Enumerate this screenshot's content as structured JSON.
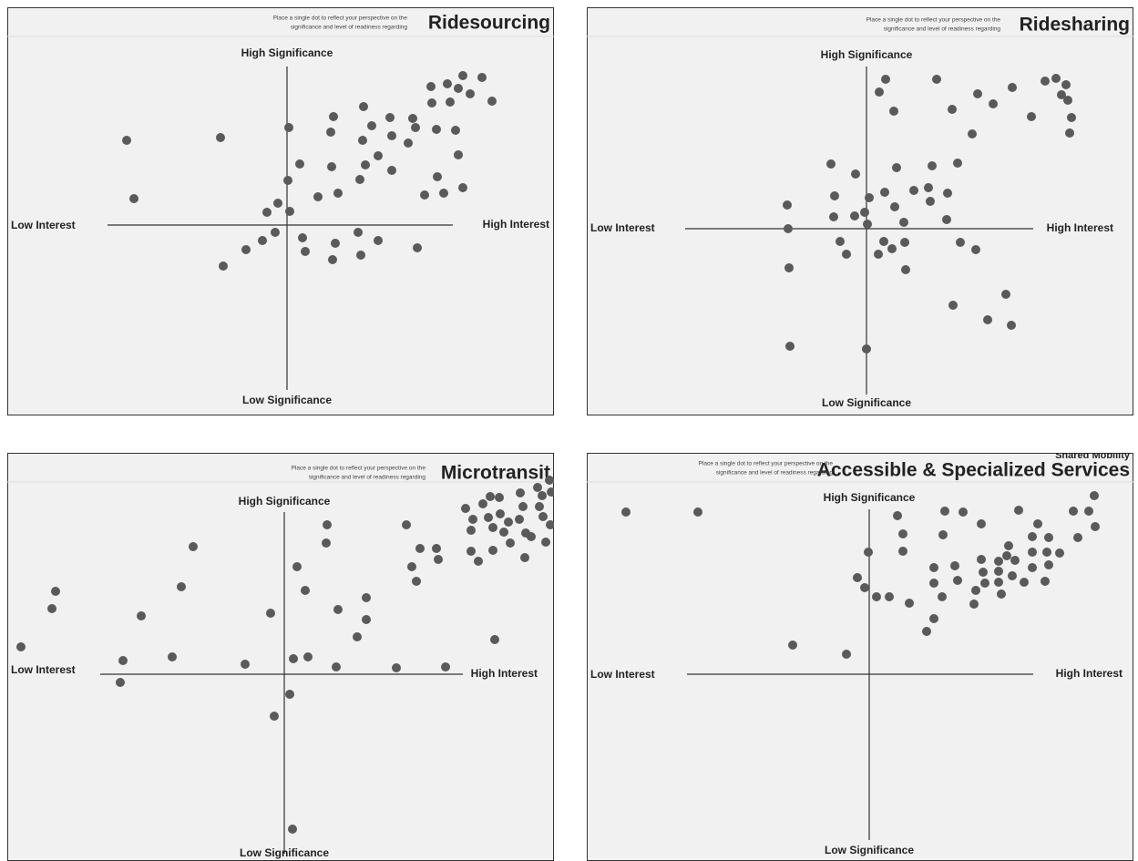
{
  "chart_data": [
    {
      "type": "scatter",
      "title": "Ridesourcing",
      "subtitle": [
        "Place a single dot to reflect your perspective on the",
        "significance and level of readiness regarding"
      ],
      "y_axis_top": "High Significance",
      "y_axis_bottom": "Low Significance",
      "x_axis_left": "Low Interest",
      "x_axis_right": "High Interest",
      "xlim": [
        0,
        600
      ],
      "ylim": [
        448,
        0
      ],
      "color": "#5a5a5a",
      "x": [
        131,
        139,
        234,
        309,
        358,
        355,
        391,
        400,
        390,
        420,
        422,
        445,
        448,
        440,
        465,
        483,
        500,
        495,
        466,
        486,
        508,
        521,
        532,
        471,
        492,
        495,
        321,
        356,
        407,
        393,
        387,
        422,
        308,
        341,
        363,
        472,
        458,
        479,
        500,
        297,
        285,
        310,
        294,
        280,
        262,
        237,
        324,
        327,
        360,
        357,
        385,
        388,
        407,
        450
      ],
      "y": [
        146,
        210,
        143,
        132,
        120,
        137,
        109,
        130,
        146,
        121,
        141,
        122,
        132,
        149,
        87,
        84,
        75,
        89,
        105,
        104,
        95,
        77,
        103,
        134,
        135,
        162,
        172,
        175,
        163,
        173,
        189,
        179,
        190,
        208,
        204,
        186,
        206,
        204,
        198,
        215,
        225,
        224,
        247,
        256,
        266,
        284,
        253,
        268,
        259,
        277,
        247,
        272,
        256,
        264
      ]
    },
    {
      "type": "scatter",
      "title": "Ridesharing",
      "subtitle": [
        "Place a single dot to reflect your perspective on the",
        "significance and level of readiness regarding"
      ],
      "y_axis_top": "High Significance",
      "y_axis_bottom": "Low Significance",
      "x_axis_left": "Low Interest",
      "x_axis_right": "High Interest",
      "xlim": [
        0,
        600
      ],
      "ylim": [
        448,
        0
      ],
      "color": "#5a5a5a",
      "x": [
        328,
        321,
        337,
        384,
        401,
        429,
        446,
        467,
        423,
        503,
        515,
        526,
        521,
        528,
        488,
        532,
        530,
        268,
        295,
        340,
        379,
        407,
        272,
        327,
        359,
        375,
        396,
        377,
        220,
        310,
        338,
        271,
        294,
        305,
        308,
        348,
        395,
        221,
        278,
        285,
        320,
        326,
        335,
        349,
        410,
        427,
        222,
        350,
        402,
        460,
        440,
        466,
        223,
        307
      ],
      "y": [
        79,
        93,
        114,
        79,
        112,
        95,
        106,
        88,
        139,
        81,
        78,
        85,
        96,
        102,
        120,
        121,
        138,
        172,
        183,
        176,
        174,
        171,
        207,
        203,
        201,
        198,
        204,
        213,
        217,
        209,
        219,
        230,
        229,
        225,
        238,
        236,
        233,
        243,
        257,
        271,
        271,
        257,
        265,
        258,
        258,
        266,
        286,
        288,
        327,
        315,
        343,
        349,
        372,
        375
      ]
    },
    {
      "type": "scatter",
      "title": "Microtransit",
      "subtitle": [
        "Place a single dot to reflect your perspective on the",
        "significance and level of readiness regarding"
      ],
      "y_axis_top": "High Significance",
      "y_axis_bottom": "Low Significance",
      "x_axis_left": "Low Interest",
      "x_axis_right": "High Interest",
      "xlim": [
        0,
        600
      ],
      "ylim": [
        448,
        0
      ],
      "color": "#5a5a5a",
      "x": [
        15,
        53,
        49,
        147,
        204,
        191,
        127,
        124,
        181,
        261,
        289,
        318,
        327,
        351,
        350,
        363,
        394,
        394,
        384,
        361,
        314,
        330,
        310,
        293,
        313,
        427,
        481,
        535,
        438,
        453,
        471,
        444,
        449,
        473,
        503,
        511,
        509,
        509,
        517,
        528,
        533,
        522,
        530,
        541,
        545,
        533,
        540,
        550,
        552,
        563,
        566,
        562,
        569,
        575,
        582,
        587,
        584,
        588,
        595,
        597,
        596,
        591,
        568
      ],
      "y": [
        213,
        152,
        171,
        179,
        103,
        147,
        228,
        252,
        224,
        232,
        176,
        125,
        151,
        79,
        99,
        172,
        159,
        183,
        202,
        235,
        226,
        224,
        265,
        289,
        413,
        236,
        235,
        205,
        79,
        105,
        105,
        125,
        141,
        117,
        61,
        73,
        85,
        108,
        119,
        71,
        82,
        56,
        48,
        67,
        87,
        107,
        49,
        76,
        99,
        44,
        59,
        73,
        88,
        92,
        38,
        47,
        59,
        70,
        30,
        43,
        79,
        98,
        115
      ]
    },
    {
      "type": "scatter",
      "supertitle": "Shared Mobility",
      "title": "Accessible & Specialized Services",
      "subtitle": [
        "Place a single dot to reflect your perspective on the",
        "significance and level of readiness regarding"
      ],
      "y_axis_top": "High Significance",
      "y_axis_bottom": "Low Significance",
      "x_axis_left": "Low Interest",
      "x_axis_right": "High Interest",
      "xlim": [
        0,
        600
      ],
      "ylim": [
        448,
        0
      ],
      "color": "#5a5a5a",
      "x": [
        43,
        122,
        226,
        285,
        341,
        347,
        347,
        309,
        297,
        305,
        318,
        332,
        354,
        373,
        381,
        393,
        413,
        391,
        381,
        381,
        390,
        404,
        407,
        425,
        427,
        433,
        433,
        435,
        437,
        452,
        452,
        452,
        455,
        461,
        463,
        470,
        467,
        474,
        480,
        489,
        489,
        489,
        495,
        503,
        505,
        507,
        507,
        519,
        534,
        539,
        551,
        557,
        558
      ],
      "y": [
        65,
        65,
        211,
        221,
        69,
        89,
        108,
        109,
        137,
        148,
        158,
        158,
        165,
        196,
        182,
        64,
        65,
        90,
        126,
        143,
        158,
        124,
        140,
        166,
        151,
        78,
        117,
        131,
        143,
        119,
        130,
        142,
        155,
        113,
        102,
        118,
        135,
        63,
        142,
        92,
        109,
        126,
        78,
        141,
        109,
        93,
        123,
        110,
        64,
        93,
        64,
        47,
        81
      ]
    }
  ]
}
